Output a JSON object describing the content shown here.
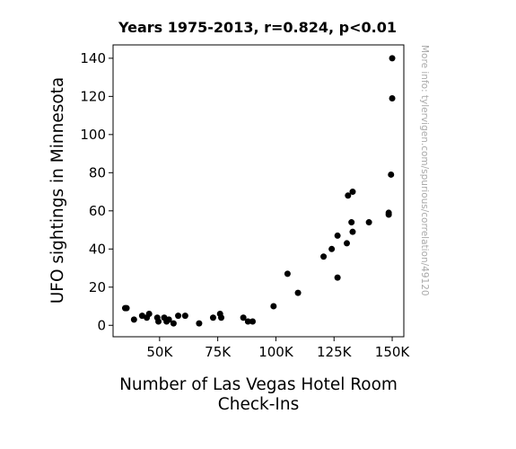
{
  "chart_data": {
    "type": "scatter",
    "title": "Years 1975-2013, r=0.824, p<0.01",
    "xlabel": "Number of Las Vegas Hotel Room Check-Ins",
    "xlabel_lines": [
      "Number of Las Vegas Hotel Room",
      "Check-Ins"
    ],
    "ylabel": "UFO sightings in Minnesota",
    "xlim": [
      30000,
      155000
    ],
    "ylim": [
      -6,
      147
    ],
    "x_ticks": [
      50000,
      75000,
      100000,
      125000,
      150000
    ],
    "x_tick_labels": [
      "50K",
      "75K",
      "100K",
      "125K",
      "150K"
    ],
    "y_ticks": [
      0,
      20,
      40,
      60,
      80,
      100,
      120,
      140
    ],
    "y_tick_labels": [
      "0",
      "20",
      "40",
      "60",
      "80",
      "100",
      "120",
      "140"
    ],
    "grid": false,
    "marker_color": "#000000",
    "points": [
      {
        "x": 35200,
        "y": 9
      },
      {
        "x": 35800,
        "y": 9
      },
      {
        "x": 39000,
        "y": 3
      },
      {
        "x": 42500,
        "y": 5
      },
      {
        "x": 44500,
        "y": 4
      },
      {
        "x": 45500,
        "y": 6
      },
      {
        "x": 49000,
        "y": 4
      },
      {
        "x": 49500,
        "y": 2
      },
      {
        "x": 52000,
        "y": 4
      },
      {
        "x": 53000,
        "y": 2
      },
      {
        "x": 54000,
        "y": 3
      },
      {
        "x": 56000,
        "y": 1
      },
      {
        "x": 58000,
        "y": 5
      },
      {
        "x": 61000,
        "y": 5
      },
      {
        "x": 67000,
        "y": 1
      },
      {
        "x": 73000,
        "y": 4
      },
      {
        "x": 76000,
        "y": 6
      },
      {
        "x": 76500,
        "y": 4
      },
      {
        "x": 86000,
        "y": 4
      },
      {
        "x": 88000,
        "y": 2
      },
      {
        "x": 90000,
        "y": 2
      },
      {
        "x": 99000,
        "y": 10
      },
      {
        "x": 105000,
        "y": 27
      },
      {
        "x": 109500,
        "y": 17
      },
      {
        "x": 120500,
        "y": 36
      },
      {
        "x": 124000,
        "y": 40
      },
      {
        "x": 126500,
        "y": 25
      },
      {
        "x": 126500,
        "y": 47
      },
      {
        "x": 130500,
        "y": 43
      },
      {
        "x": 131000,
        "y": 68
      },
      {
        "x": 132500,
        "y": 54
      },
      {
        "x": 133000,
        "y": 49
      },
      {
        "x": 133000,
        "y": 70
      },
      {
        "x": 140000,
        "y": 54
      },
      {
        "x": 148500,
        "y": 58
      },
      {
        "x": 148500,
        "y": 59
      },
      {
        "x": 149500,
        "y": 79
      },
      {
        "x": 150000,
        "y": 119
      },
      {
        "x": 150000,
        "y": 140
      }
    ]
  },
  "credit": "More info: tylervigen.com/spurious/correlation/49120"
}
